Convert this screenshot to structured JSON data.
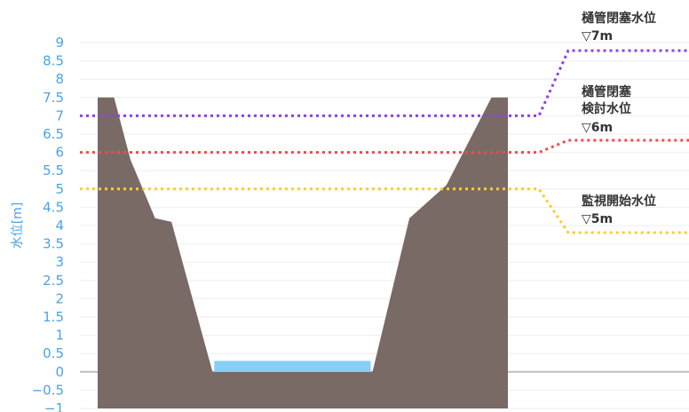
{
  "chart_data": {
    "type": "area",
    "ylabel": "水位[m]",
    "ylim": [
      -1,
      9
    ],
    "y_ticks": [
      "9",
      "8.5",
      "8",
      "7.5",
      "7",
      "6.5",
      "6",
      "5.5",
      "5",
      "4.5",
      "4",
      "3.5",
      "3",
      "2.5",
      "2",
      "1.5",
      "1",
      "0.5",
      "0",
      "-0.5",
      "-1"
    ],
    "grid": true,
    "riverbank_profile": {
      "name": "",
      "color": "#796a66",
      "points": [
        [
          0,
          7.5
        ],
        [
          0.04,
          7.5
        ],
        [
          0.08,
          5.8
        ],
        [
          0.14,
          4.2
        ],
        [
          0.18,
          4.1
        ],
        [
          0.28,
          0
        ],
        [
          0.67,
          0
        ],
        [
          0.76,
          4.2
        ],
        [
          0.85,
          5.1
        ],
        [
          0.96,
          7.5
        ],
        [
          1.0,
          7.5
        ]
      ]
    },
    "water": {
      "name": "",
      "level": 0.3,
      "color": "#86cff7"
    },
    "thresholds": [
      {
        "title": "樋管閉塞水位",
        "value_label": "▽7m",
        "value": 7,
        "color": "#8e3ff0"
      },
      {
        "title": "樋管閉塞検討水位",
        "title_lines": [
          "樋管閉塞",
          "検討水位"
        ],
        "value_label": "▽6m",
        "value": 6,
        "color": "#f54a4a"
      },
      {
        "title": "監視開始水位",
        "value_label": "▽5m",
        "value": 5,
        "color": "#f7cf2e"
      }
    ]
  }
}
